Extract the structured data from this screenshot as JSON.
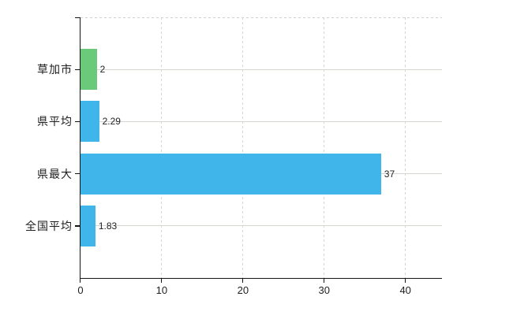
{
  "chart_data": {
    "type": "bar",
    "orientation": "horizontal",
    "title": "",
    "categories": [
      "草加市",
      "県平均",
      "県最大",
      "全国平均"
    ],
    "values": [
      2,
      2.29,
      37,
      1.83
    ],
    "value_labels": [
      "2",
      "2.29",
      "37",
      "1.83"
    ],
    "bar_colors": [
      "#6bc97a",
      "#40b5e9",
      "#40b5e9",
      "#40b5e9"
    ],
    "x_tick_labels": [
      "0",
      "10",
      "20",
      "30",
      "40"
    ],
    "x_tick_values": [
      0,
      10,
      20,
      30,
      40
    ],
    "xlim": [
      0,
      44.5
    ],
    "grid": true,
    "legend": false,
    "xlabel": "",
    "ylabel": ""
  },
  "colors": {
    "axis": "#141414",
    "grid_solid": "#d2d7cf",
    "grid_dashed": "#d0d0d0",
    "text": "#222222",
    "bar_green": "#6bc97a",
    "bar_blue": "#40b5e9",
    "background": "#ffffff"
  }
}
